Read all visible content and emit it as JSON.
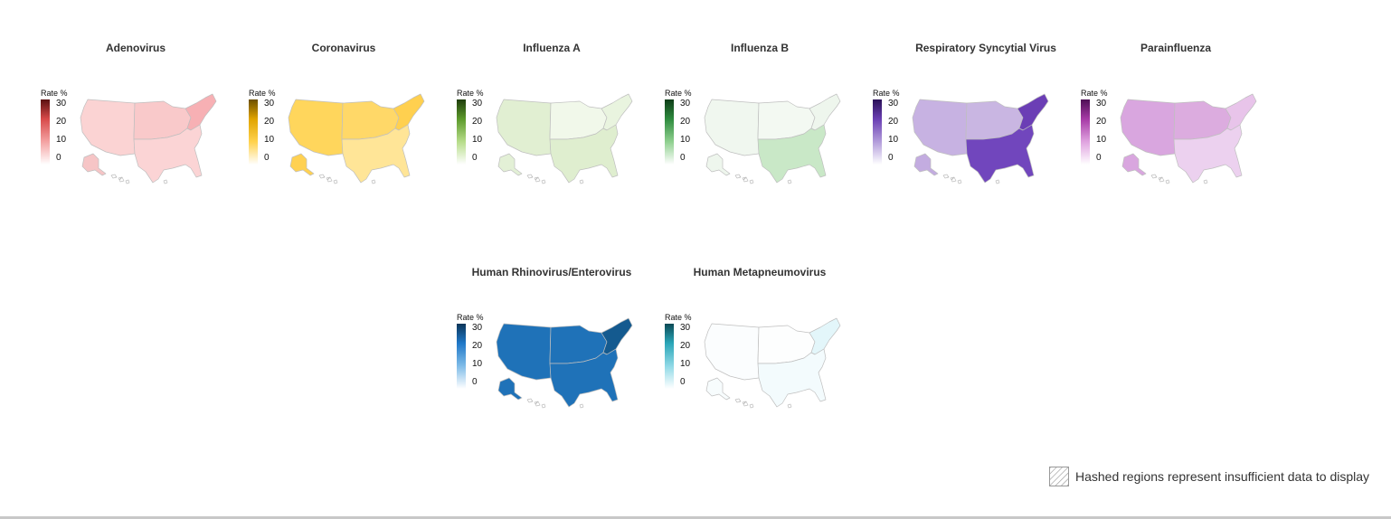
{
  "legend_title": "Rate %",
  "legend_ticks": [
    "30",
    "20",
    "10",
    "0"
  ],
  "note": "Hashed regions represent insufficient data to display",
  "maps": [
    {
      "title": "Adenovirus",
      "ramp": [
        "#ffffff",
        "#f4a3a3",
        "#d84a4a",
        "#5a1010"
      ],
      "regions": {
        "west": "#fbd3d3",
        "midwest": "#f9c9ca",
        "northeast": "#f7b0b4",
        "south": "#fbd4d5",
        "alaska": "#f6c5c6"
      }
    },
    {
      "title": "Coronavirus",
      "ramp": [
        "#ffffff",
        "#ffd24d",
        "#e0a400",
        "#6b4f00"
      ],
      "regions": {
        "west": "#ffd65c",
        "midwest": "#ffd868",
        "northeast": "#ffd04f",
        "south": "#ffe597",
        "alaska": "#ffd152"
      }
    },
    {
      "title": "Influenza A",
      "ramp": [
        "#ffffff",
        "#b7dd8a",
        "#5c9a2b",
        "#1f3d0c"
      ],
      "regions": {
        "west": "#e1efd2",
        "midwest": "#f1f8ea",
        "northeast": "#e9f4df",
        "south": "#dfeecf",
        "alaska": "#e3f0d6"
      }
    },
    {
      "title": "Influenza B",
      "ramp": [
        "#ffffff",
        "#8fd08f",
        "#2e8b3e",
        "#0e3d18"
      ],
      "regions": {
        "west": "#f0f7ef",
        "midwest": "#f3f9f2",
        "northeast": "#eef6ed",
        "south": "#c9e8c7",
        "alaska": "#eef6ed"
      }
    },
    {
      "title": "Respiratory Syncytial Virus",
      "ramp": [
        "#ffffff",
        "#b39ddb",
        "#6a3fb3",
        "#2a1057"
      ],
      "regions": {
        "west": "#c7b2e2",
        "midwest": "#c9b6e2",
        "northeast": "#6b3eb5",
        "south": "#7146bd",
        "alaska": "#c3ace0"
      }
    },
    {
      "title": "Parainfluenza",
      "ramp": [
        "#ffffff",
        "#e0a3e0",
        "#a63aa6",
        "#4e0f55"
      ],
      "regions": {
        "west": "#d9a6df",
        "midwest": "#dcacdf",
        "northeast": "#e8c4ea",
        "south": "#ecd1ef",
        "alaska": "#d9a6df"
      }
    },
    {
      "title": "Human Rhinovirus/Enterovirus",
      "ramp": [
        "#ffffff",
        "#7fbce8",
        "#1f78c8",
        "#0b3558"
      ],
      "regions": {
        "west": "#1f72b8",
        "midwest": "#1f72b8",
        "northeast": "#145a8f",
        "south": "#1f72b8",
        "alaska": "#1f72b8"
      }
    },
    {
      "title": "Human Metapneumovirus",
      "ramp": [
        "#ffffff",
        "#8fd9e6",
        "#2aa6b8",
        "#0b4a55"
      ],
      "regions": {
        "west": "#fbfdfe",
        "midwest": "#fdfefe",
        "northeast": "#e3f6fa",
        "south": "#f3fbfd",
        "alaska": "#f7fcfd"
      }
    }
  ]
}
